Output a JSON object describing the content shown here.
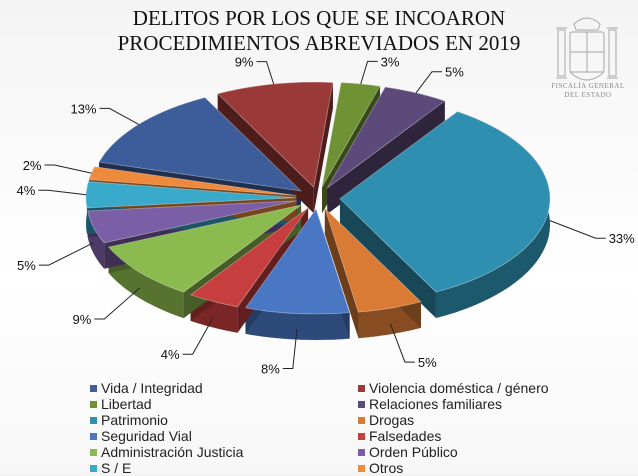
{
  "title_lines": [
    "DELITOS POR LOS QUE SE INCOARON",
    "PROCEDIMIENTOS ABREVIADOS EN 2019"
  ],
  "logo_text": [
    "FISCALÍA GENERAL",
    "DEL ESTADO"
  ],
  "chart_data": {
    "type": "pie",
    "title": "DELITOS POR LOS QUE SE INCOARON PROCEDIMIENTOS ABREVIADOS EN 2019",
    "legend_placement": "bottom",
    "series": [
      {
        "name": "Vida / Integridad",
        "value": 13,
        "label": "13%",
        "color": "#3d5d9a"
      },
      {
        "name": "Violencia doméstica / género",
        "value": 9,
        "label": "9%",
        "color": "#9a3a38"
      },
      {
        "name": "Libertad",
        "value": 3,
        "label": "3%",
        "color": "#6f9234"
      },
      {
        "name": "Relaciones familiares",
        "value": 5,
        "label": "5%",
        "color": "#5c4a7a"
      },
      {
        "name": "Patrimonio",
        "value": 33,
        "label": "33%",
        "color": "#2f8fb0"
      },
      {
        "name": "Drogas",
        "value": 5,
        "label": "5%",
        "color": "#d97b35"
      },
      {
        "name": "Seguridad Vial",
        "value": 8,
        "label": "8%",
        "color": "#4a77c4"
      },
      {
        "name": "Falsedades",
        "value": 4,
        "label": "4%",
        "color": "#c63e3e"
      },
      {
        "name": "Administración Justicia",
        "value": 9,
        "label": "9%",
        "color": "#8bba4e"
      },
      {
        "name": "Orden Público",
        "value": 5,
        "label": "5%",
        "color": "#7a5fa6"
      },
      {
        "name": "S / E",
        "value": 4,
        "label": "4%",
        "color": "#3aaacb"
      },
      {
        "name": "Otros",
        "value": 2,
        "label": "2%",
        "color": "#ee8a3c"
      }
    ]
  }
}
